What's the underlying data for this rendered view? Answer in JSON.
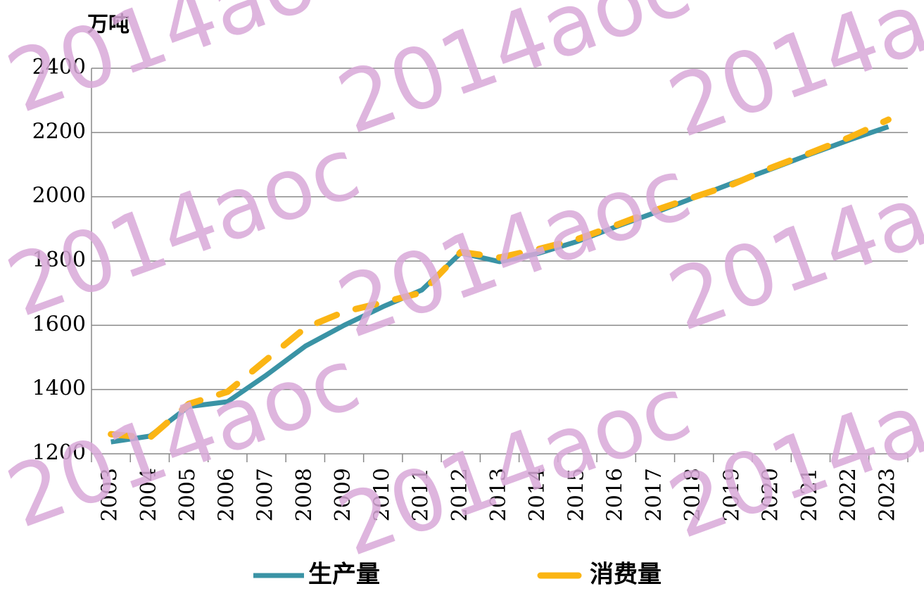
{
  "chart_data": {
    "type": "line",
    "y_label": "万吨",
    "watermark": "2014aoc",
    "categories": [
      "2003",
      "2004",
      "2005",
      "2006",
      "2007",
      "2008",
      "2009",
      "2010",
      "2011",
      "2012",
      "2013",
      "2014",
      "2015",
      "2016",
      "2017",
      "2018",
      "2019",
      "2020",
      "2021",
      "2022",
      "2023"
    ],
    "series": [
      {
        "name": "生产量",
        "color": "#3a93a5",
        "dash": false,
        "values": [
          1237,
          1255,
          1347,
          1362,
          1445,
          1535,
          1600,
          1658,
          1710,
          1825,
          1798,
          1824,
          1861,
          1907,
          1951,
          1997,
          2043,
          2087,
          2133,
          2177,
          2218
        ]
      },
      {
        "name": "消费量",
        "color": "#fbb514",
        "dash": true,
        "values": [
          1261,
          1250,
          1355,
          1393,
          1493,
          1592,
          1642,
          1671,
          1702,
          1828,
          1811,
          1837,
          1868,
          1912,
          1958,
          1999,
          2039,
          2091,
          2137,
          2185,
          2240
        ]
      }
    ],
    "ylim": [
      1200,
      2400
    ],
    "yticks": [
      1200,
      1400,
      1600,
      1800,
      2000,
      2200,
      2400
    ],
    "grid": true
  }
}
